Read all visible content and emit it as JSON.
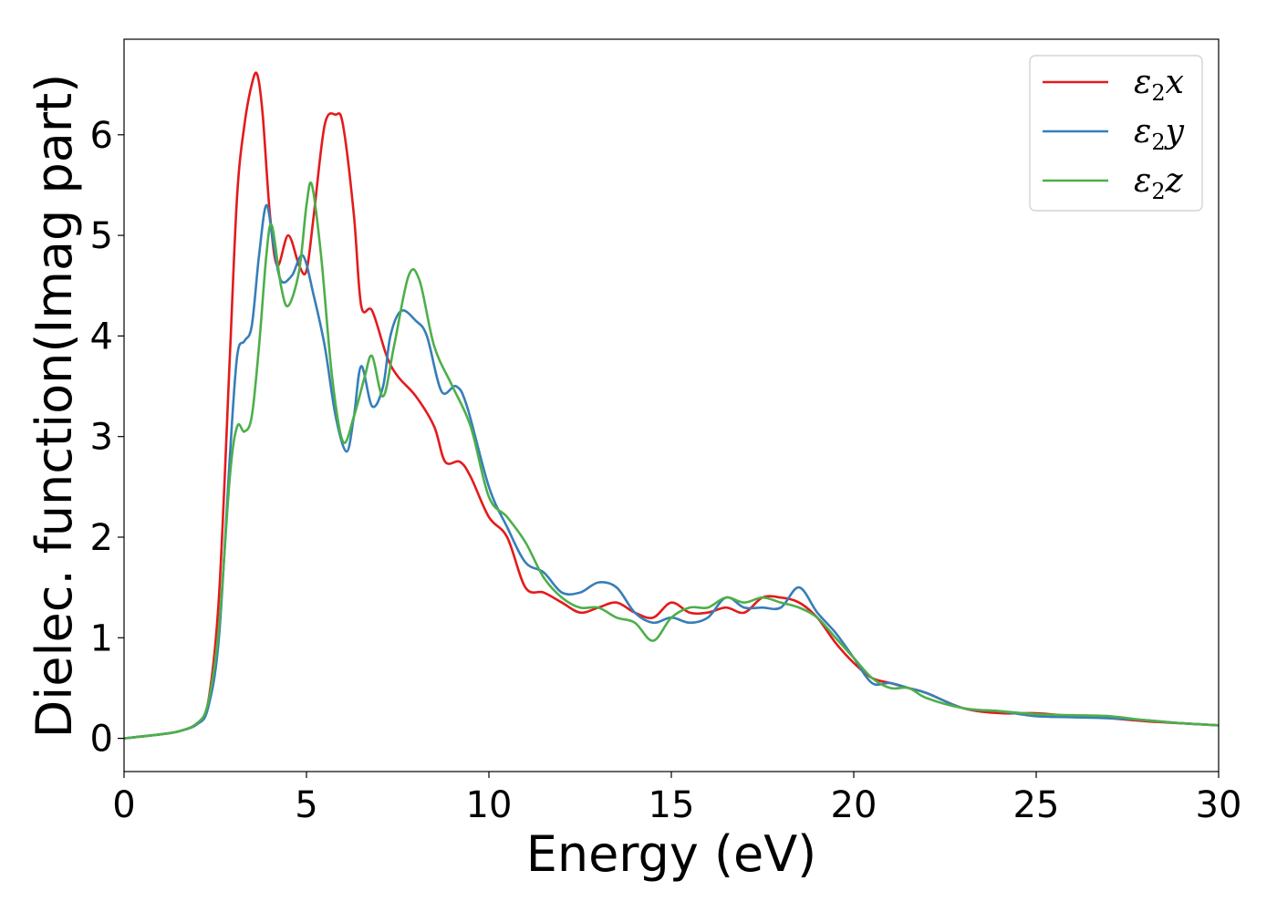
{
  "chart_data": {
    "type": "line",
    "title": "",
    "xlabel": "Energy (eV)",
    "ylabel": "Dielec. function(Imag part)",
    "xlim": [
      0,
      30
    ],
    "ylim": [
      -0.33,
      6.95
    ],
    "xticks": [
      0,
      5,
      10,
      15,
      20,
      25,
      30
    ],
    "yticks": [
      0,
      1,
      2,
      3,
      4,
      5,
      6
    ],
    "grid": false,
    "legend_position": "top-right",
    "series": [
      {
        "name": "ε₂x",
        "legend_base": "ε",
        "legend_sub": "2",
        "legend_tail": "x",
        "color": "#e41a1c",
        "points": [
          [
            0,
            0
          ],
          [
            1,
            0.04
          ],
          [
            1.5,
            0.07
          ],
          [
            2,
            0.15
          ],
          [
            2.3,
            0.35
          ],
          [
            2.6,
            1.4
          ],
          [
            2.9,
            3.8
          ],
          [
            3.1,
            5.4
          ],
          [
            3.3,
            6.1
          ],
          [
            3.5,
            6.5
          ],
          [
            3.65,
            6.6
          ],
          [
            3.8,
            6.2
          ],
          [
            4.0,
            5.2
          ],
          [
            4.2,
            4.7
          ],
          [
            4.5,
            5.0
          ],
          [
            4.8,
            4.7
          ],
          [
            5.0,
            4.65
          ],
          [
            5.2,
            5.2
          ],
          [
            5.5,
            6.1
          ],
          [
            5.8,
            6.2
          ],
          [
            6.0,
            6.1
          ],
          [
            6.3,
            5.2
          ],
          [
            6.5,
            4.3
          ],
          [
            6.8,
            4.25
          ],
          [
            7.2,
            3.8
          ],
          [
            7.5,
            3.6
          ],
          [
            8.0,
            3.4
          ],
          [
            8.5,
            3.1
          ],
          [
            8.8,
            2.75
          ],
          [
            9.2,
            2.75
          ],
          [
            9.5,
            2.6
          ],
          [
            10.0,
            2.2
          ],
          [
            10.5,
            2.0
          ],
          [
            11.0,
            1.5
          ],
          [
            11.5,
            1.45
          ],
          [
            12.0,
            1.35
          ],
          [
            12.5,
            1.25
          ],
          [
            13.0,
            1.3
          ],
          [
            13.5,
            1.35
          ],
          [
            14.0,
            1.25
          ],
          [
            14.5,
            1.2
          ],
          [
            15.0,
            1.35
          ],
          [
            15.5,
            1.25
          ],
          [
            16.0,
            1.25
          ],
          [
            16.5,
            1.3
          ],
          [
            17.0,
            1.25
          ],
          [
            17.5,
            1.4
          ],
          [
            18.0,
            1.4
          ],
          [
            18.5,
            1.35
          ],
          [
            19.0,
            1.2
          ],
          [
            19.5,
            0.95
          ],
          [
            20.0,
            0.75
          ],
          [
            20.5,
            0.6
          ],
          [
            21.0,
            0.55
          ],
          [
            21.5,
            0.5
          ],
          [
            22.0,
            0.45
          ],
          [
            23.0,
            0.3
          ],
          [
            24.0,
            0.25
          ],
          [
            25.0,
            0.25
          ],
          [
            26.0,
            0.22
          ],
          [
            27.0,
            0.2
          ],
          [
            28.0,
            0.17
          ],
          [
            29.0,
            0.15
          ],
          [
            30.0,
            0.13
          ]
        ]
      },
      {
        "name": "ε₂y",
        "legend_base": "ε",
        "legend_sub": "2",
        "legend_tail": "y",
        "color": "#377eb8",
        "points": [
          [
            0,
            0
          ],
          [
            1,
            0.04
          ],
          [
            1.5,
            0.07
          ],
          [
            2,
            0.14
          ],
          [
            2.3,
            0.3
          ],
          [
            2.6,
            1.0
          ],
          [
            2.9,
            2.8
          ],
          [
            3.1,
            3.8
          ],
          [
            3.3,
            3.95
          ],
          [
            3.5,
            4.1
          ],
          [
            3.7,
            4.8
          ],
          [
            3.9,
            5.3
          ],
          [
            4.1,
            4.9
          ],
          [
            4.3,
            4.55
          ],
          [
            4.6,
            4.6
          ],
          [
            4.9,
            4.8
          ],
          [
            5.2,
            4.4
          ],
          [
            5.5,
            3.9
          ],
          [
            5.8,
            3.2
          ],
          [
            6.1,
            2.85
          ],
          [
            6.3,
            3.2
          ],
          [
            6.5,
            3.7
          ],
          [
            6.8,
            3.3
          ],
          [
            7.1,
            3.5
          ],
          [
            7.3,
            4.0
          ],
          [
            7.6,
            4.25
          ],
          [
            8.0,
            4.15
          ],
          [
            8.3,
            4.0
          ],
          [
            8.7,
            3.45
          ],
          [
            9.1,
            3.5
          ],
          [
            9.4,
            3.3
          ],
          [
            10.0,
            2.5
          ],
          [
            10.5,
            2.1
          ],
          [
            11.0,
            1.75
          ],
          [
            11.5,
            1.65
          ],
          [
            12.0,
            1.45
          ],
          [
            12.5,
            1.45
          ],
          [
            13.0,
            1.55
          ],
          [
            13.5,
            1.5
          ],
          [
            14.0,
            1.25
          ],
          [
            14.5,
            1.15
          ],
          [
            15.0,
            1.2
          ],
          [
            15.5,
            1.15
          ],
          [
            16.0,
            1.2
          ],
          [
            16.5,
            1.4
          ],
          [
            17.0,
            1.3
          ],
          [
            17.5,
            1.3
          ],
          [
            18.0,
            1.3
          ],
          [
            18.5,
            1.5
          ],
          [
            19.0,
            1.25
          ],
          [
            19.5,
            1.05
          ],
          [
            20.0,
            0.8
          ],
          [
            20.5,
            0.55
          ],
          [
            21.0,
            0.55
          ],
          [
            21.5,
            0.5
          ],
          [
            22.0,
            0.45
          ],
          [
            23.0,
            0.3
          ],
          [
            24.0,
            0.27
          ],
          [
            25.0,
            0.22
          ],
          [
            26.0,
            0.21
          ],
          [
            27.0,
            0.2
          ],
          [
            28.0,
            0.18
          ],
          [
            29.0,
            0.15
          ],
          [
            30.0,
            0.13
          ]
        ]
      },
      {
        "name": "ε₂z",
        "legend_base": "ε",
        "legend_sub": "2",
        "legend_tail": "z",
        "color": "#4daf4a",
        "points": [
          [
            0,
            0
          ],
          [
            1,
            0.04
          ],
          [
            1.5,
            0.07
          ],
          [
            2,
            0.15
          ],
          [
            2.3,
            0.35
          ],
          [
            2.6,
            1.1
          ],
          [
            2.9,
            2.6
          ],
          [
            3.1,
            3.1
          ],
          [
            3.3,
            3.05
          ],
          [
            3.5,
            3.2
          ],
          [
            3.7,
            3.9
          ],
          [
            3.9,
            4.8
          ],
          [
            4.05,
            5.1
          ],
          [
            4.3,
            4.5
          ],
          [
            4.5,
            4.3
          ],
          [
            4.8,
            4.65
          ],
          [
            5.0,
            5.3
          ],
          [
            5.15,
            5.5
          ],
          [
            5.4,
            4.8
          ],
          [
            5.7,
            3.6
          ],
          [
            6.0,
            2.95
          ],
          [
            6.3,
            3.2
          ],
          [
            6.6,
            3.6
          ],
          [
            6.8,
            3.8
          ],
          [
            7.1,
            3.4
          ],
          [
            7.4,
            3.9
          ],
          [
            7.8,
            4.6
          ],
          [
            8.1,
            4.55
          ],
          [
            8.5,
            3.9
          ],
          [
            9.0,
            3.5
          ],
          [
            9.5,
            3.1
          ],
          [
            10.0,
            2.4
          ],
          [
            10.5,
            2.2
          ],
          [
            11.0,
            1.95
          ],
          [
            11.5,
            1.6
          ],
          [
            12.0,
            1.4
          ],
          [
            12.5,
            1.3
          ],
          [
            13.0,
            1.3
          ],
          [
            13.5,
            1.2
          ],
          [
            14.0,
            1.15
          ],
          [
            14.5,
            0.97
          ],
          [
            15.0,
            1.2
          ],
          [
            15.5,
            1.3
          ],
          [
            16.0,
            1.3
          ],
          [
            16.5,
            1.4
          ],
          [
            17.0,
            1.35
          ],
          [
            17.5,
            1.4
          ],
          [
            18.0,
            1.35
          ],
          [
            18.5,
            1.3
          ],
          [
            19.0,
            1.2
          ],
          [
            19.5,
            1.0
          ],
          [
            20.0,
            0.8
          ],
          [
            20.5,
            0.6
          ],
          [
            21.0,
            0.5
          ],
          [
            21.5,
            0.5
          ],
          [
            22.0,
            0.4
          ],
          [
            23.0,
            0.3
          ],
          [
            24.0,
            0.27
          ],
          [
            25.0,
            0.24
          ],
          [
            26.0,
            0.23
          ],
          [
            27.0,
            0.22
          ],
          [
            28.0,
            0.18
          ],
          [
            29.0,
            0.15
          ],
          [
            30.0,
            0.13
          ]
        ]
      }
    ]
  }
}
